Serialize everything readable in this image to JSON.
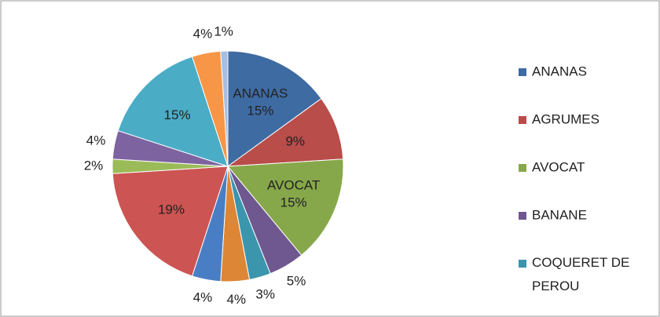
{
  "chart_data": {
    "type": "pie",
    "categories": [
      "ANANAS",
      "AGRUMES",
      "AVOCAT",
      "BANANE",
      "COQUERET DE PEROU",
      null,
      null,
      null,
      null,
      null,
      null,
      null,
      null
    ],
    "values": [
      15,
      9,
      15,
      5,
      3,
      4,
      4,
      19,
      2,
      4,
      15,
      4,
      1
    ],
    "value_labels": [
      "15%",
      "9%",
      "15%",
      "5%",
      "3%",
      "4%",
      "4%",
      "19%",
      "2%",
      "4%",
      "15%",
      "4%",
      "1%"
    ],
    "colors": [
      "#3f6ba3",
      "#b84d4a",
      "#87a84a",
      "#6f578f",
      "#3b95ad",
      "#dd8636",
      "#4a7ec4",
      "#cc5452",
      "#9bbb59",
      "#7e63a1",
      "#4bacc6",
      "#f79646",
      "#a9bde0"
    ],
    "named_labels": [
      0,
      2
    ],
    "legend": "right"
  }
}
